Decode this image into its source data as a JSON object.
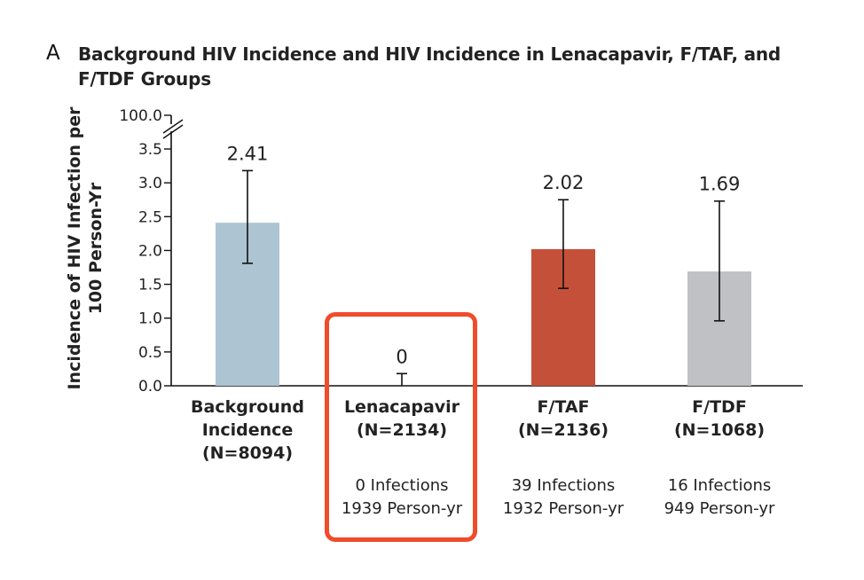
{
  "panel_letter": "A",
  "chart_data": {
    "type": "bar",
    "title": "Background HIV Incidence and HIV Incidence in Lenacapavir, F/TAF, and F/TDF Groups",
    "xlabel": "",
    "ylabel": "Incidence of HIV Infection per 100 Person-Yr",
    "ylim": [
      0,
      3.5
    ],
    "y_axis_break": {
      "break_after": 3.5,
      "top_tick": "100.0"
    },
    "yticks": [
      "0.0",
      "0.5",
      "1.0",
      "1.5",
      "2.0",
      "2.5",
      "3.0",
      "3.5"
    ],
    "ytick_values": [
      0,
      0.5,
      1.0,
      1.5,
      2.0,
      2.5,
      3.0,
      3.5
    ],
    "grid": false,
    "categories": [
      {
        "name": "Background Incidence",
        "lines": [
          "Background",
          "Incidence",
          "(N=8094)"
        ],
        "n": "N=8094"
      },
      {
        "name": "Lenacapavir",
        "lines": [
          "Lenacapavir",
          "(N=2134)"
        ],
        "n": "N=2134"
      },
      {
        "name": "F/TAF",
        "lines": [
          "F/TAF",
          "(N=2136)"
        ],
        "n": "N=2136"
      },
      {
        "name": "F/TDF",
        "lines": [
          "F/TDF",
          "(N=1068)"
        ],
        "n": "N=1068"
      }
    ],
    "values": [
      2.41,
      0,
      2.02,
      1.69
    ],
    "value_labels": [
      "2.41",
      "0",
      "2.02",
      "1.69"
    ],
    "ci_lower": [
      1.81,
      0,
      1.44,
      0.96
    ],
    "ci_upper": [
      3.18,
      0.18,
      2.75,
      2.73
    ],
    "colors": [
      "#adc4d2",
      "#adc4d2",
      "#c55039",
      "#bfc1c4"
    ],
    "subtitles": [
      null,
      [
        "0 Infections",
        "1939 Person-yr"
      ],
      [
        "39 Infections",
        "1932 Person-yr"
      ],
      [
        "16 Infections",
        "949 Person-yr"
      ]
    ],
    "annotations": [
      {
        "type": "highlight-box",
        "target": "Lenacapavir",
        "color": "#f04b2a"
      }
    ]
  }
}
